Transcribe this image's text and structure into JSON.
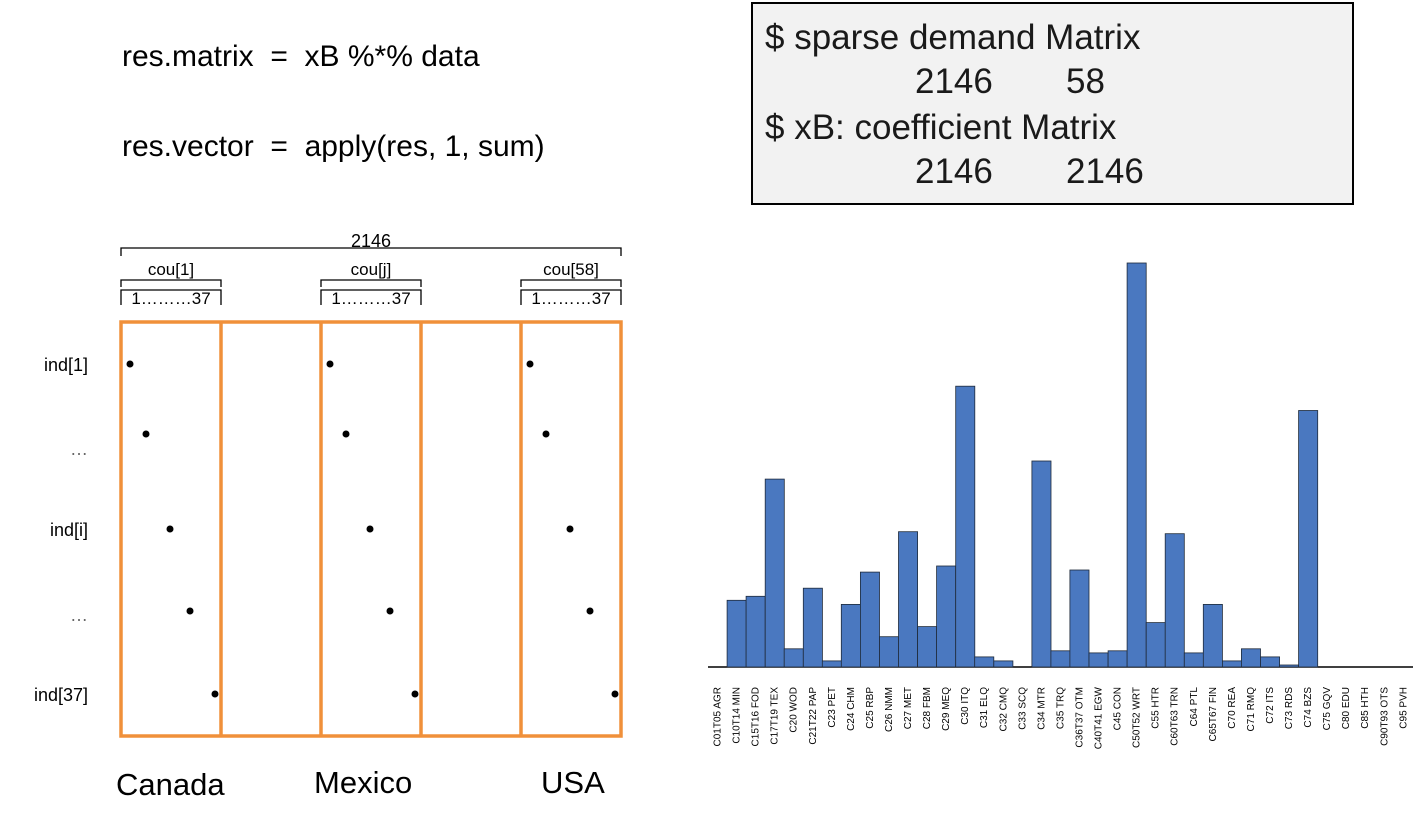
{
  "formulas": {
    "line1": "res.matrix  =  xB %*% data",
    "line2": "res.vector  =  apply(res, 1, sum)"
  },
  "info_box": {
    "row1_label": "$ sparse demand Matrix",
    "row1_dims": [
      "2146",
      "58"
    ],
    "row2_label": "$ xB: coefficient Matrix",
    "row2_dims": [
      "2146",
      "2146"
    ]
  },
  "matrix_diagram": {
    "total_label": "2146",
    "country_blocks": [
      {
        "label": "cou[1]",
        "range": "1………37",
        "country": "Canada"
      },
      {
        "label": "cou[j]",
        "range": "1………37",
        "country": "Mexico"
      },
      {
        "label": "cou[58]",
        "range": "1………37",
        "country": "USA"
      }
    ],
    "row_labels": [
      "ind[1]",
      "…",
      "ind[i]",
      "…",
      "ind[37]"
    ],
    "border_color": "#f0903a"
  },
  "chart_data": {
    "type": "bar",
    "title": "",
    "xlabel": "",
    "ylabel": "",
    "bar_color": "#4a78c0",
    "categories": [
      "C01T05 AGR",
      "C10T14 MIN",
      "C15T16 FOD",
      "C17T19 TEX",
      "C20 WOD",
      "C21T22 PAP",
      "C23 PET",
      "C24 CHM",
      "C25 RBP",
      "C26 NMM",
      "C27 MET",
      "C28 FBM",
      "C29 MEQ",
      "C30 ITQ",
      "C31 ELQ",
      "C32 CMQ",
      "C33 SCQ",
      "C34 MTR",
      "C35 TRQ",
      "C36T37 OTM",
      "C40T41 EGW",
      "C45 CON",
      "C50T52 WRT",
      "C55 HTR",
      "C60T63 TRN",
      "C64 PTL",
      "C65T67 FIN",
      "C70 REA",
      "C71 RMQ",
      "C72 ITS",
      "C73 RDS",
      "C74 BZS",
      "C75 GQV",
      "C80 EDU",
      "C85 HTH",
      "C90T93 OTS",
      "C95 PVH"
    ],
    "values": [
      0,
      16.5,
      17.5,
      46.5,
      4.5,
      19.5,
      1.5,
      15.5,
      23.5,
      7.5,
      33.5,
      10,
      25,
      69.5,
      2.5,
      1.5,
      0,
      51,
      4,
      24,
      3.5,
      4,
      100,
      11,
      33,
      3.5,
      15.5,
      1.5,
      4.5,
      2.5,
      0.5,
      63.5,
      0,
      0,
      0,
      0,
      0
    ],
    "ylim": [
      0,
      100
    ]
  }
}
